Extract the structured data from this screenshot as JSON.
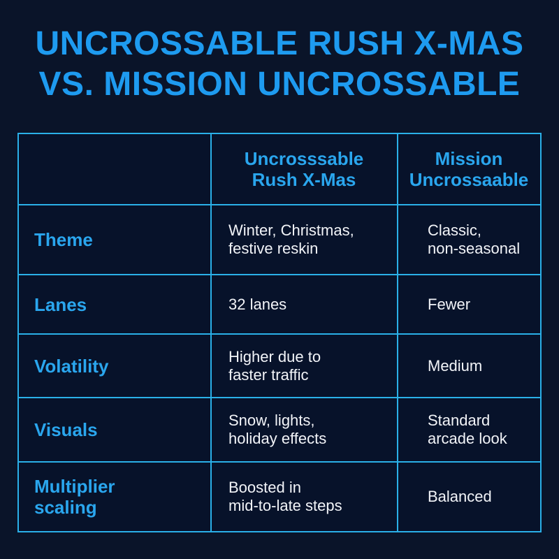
{
  "title": [
    "UNCROSSABLE RUSH X-MAS",
    "VS. MISSION UNCROSSABLE"
  ],
  "colors": {
    "background": "#0a1429",
    "accent": "#1e9bf0",
    "border": "#2ab0e8",
    "text": "#f2f4f8"
  },
  "table": {
    "headers": [
      "",
      [
        "Uncrosssable",
        "Rush X-Mas"
      ],
      [
        "Mission",
        "Uncrossaable"
      ]
    ],
    "rows": [
      {
        "label": [
          "Theme"
        ],
        "a": [
          "Winter, Christmas,",
          "festive reskin"
        ],
        "b": [
          "Classic,",
          "non-seasonal"
        ]
      },
      {
        "label": [
          "Lanes"
        ],
        "a": [
          "32 lanes"
        ],
        "b": [
          "Fewer"
        ]
      },
      {
        "label": [
          "Volatility"
        ],
        "a": [
          "Higher due to",
          "faster traffic"
        ],
        "b": [
          "Medium"
        ]
      },
      {
        "label": [
          "Visuals"
        ],
        "a": [
          "Snow, lights,",
          "holiday effects"
        ],
        "b": [
          "Standard",
          "arcade look"
        ]
      },
      {
        "label": [
          "Multiplier",
          "scaling"
        ],
        "a": [
          "Boosted in",
          "mid-to-late steps"
        ],
        "b": [
          "Balanced"
        ]
      }
    ]
  }
}
